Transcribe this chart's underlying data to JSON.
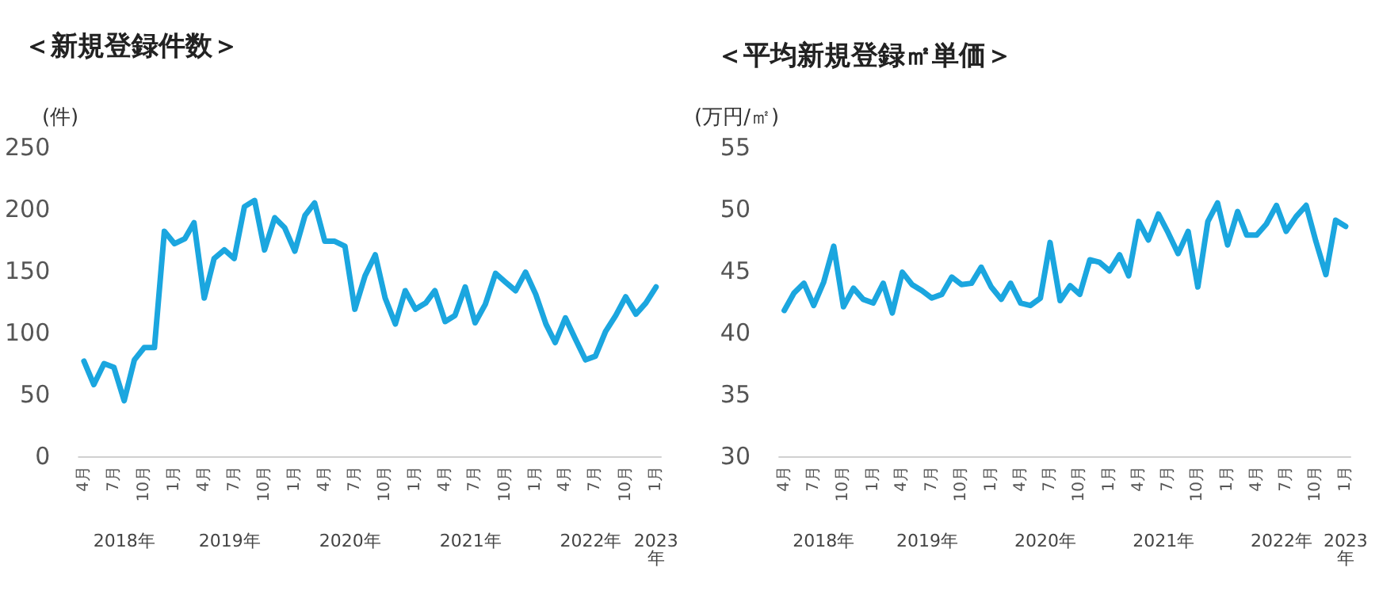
{
  "chart_data": [
    {
      "type": "line",
      "title": "＜新規登録件数＞",
      "ylabel": "(件)",
      "marker": "none",
      "line_style": "solid",
      "x": [
        "2018-04",
        "2018-05",
        "2018-06",
        "2018-07",
        "2018-08",
        "2018-09",
        "2018-10",
        "2018-11",
        "2018-12",
        "2019-01",
        "2019-02",
        "2019-03",
        "2019-04",
        "2019-05",
        "2019-06",
        "2019-07",
        "2019-08",
        "2019-09",
        "2019-10",
        "2019-11",
        "2019-12",
        "2020-01",
        "2020-02",
        "2020-03",
        "2020-04",
        "2020-05",
        "2020-06",
        "2020-07",
        "2020-08",
        "2020-09",
        "2020-10",
        "2020-11",
        "2020-12",
        "2021-01",
        "2021-02",
        "2021-03",
        "2021-04",
        "2021-05",
        "2021-06",
        "2021-07",
        "2021-08",
        "2021-09",
        "2021-10",
        "2021-11",
        "2021-12",
        "2022-01",
        "2022-02",
        "2022-03",
        "2022-04",
        "2022-05",
        "2022-06",
        "2022-07",
        "2022-08",
        "2022-09",
        "2022-10",
        "2022-11",
        "2022-12",
        "2023-01"
      ],
      "series": [
        {
          "color": "#1ba6df",
          "values": [
            77,
            58,
            75,
            72,
            45,
            78,
            88,
            88,
            182,
            172,
            176,
            189,
            128,
            160,
            167,
            160,
            202,
            207,
            167,
            193,
            185,
            166,
            195,
            205,
            174,
            174,
            170,
            119,
            146,
            163,
            128,
            107,
            134,
            119,
            124,
            134,
            109,
            114,
            137,
            108,
            123,
            148,
            141,
            134,
            149,
            131,
            107,
            92,
            112,
            95,
            78,
            81,
            101,
            114,
            129,
            115,
            124,
            137
          ]
        }
      ],
      "ylim": [
        0,
        250
      ],
      "yticks": [
        0,
        50,
        100,
        150,
        200,
        250
      ],
      "xlim": [
        "2018-03-16",
        "2023-01-16"
      ],
      "xticks": [
        {
          "value": "2018-04",
          "label": "4月"
        },
        {
          "value": "2018-07",
          "label": "7月"
        },
        {
          "value": "2018-10",
          "label": "10月"
        },
        {
          "value": "2019-01",
          "label": "1月"
        },
        {
          "value": "2019-04",
          "label": "4月"
        },
        {
          "value": "2019-07",
          "label": "7月"
        },
        {
          "value": "2019-10",
          "label": "10月"
        },
        {
          "value": "2020-01",
          "label": "1月"
        },
        {
          "value": "2020-04",
          "label": "4月"
        },
        {
          "value": "2020-07",
          "label": "7月"
        },
        {
          "value": "2020-10",
          "label": "10月"
        },
        {
          "value": "2021-01",
          "label": "1月"
        },
        {
          "value": "2021-04",
          "label": "4月"
        },
        {
          "value": "2021-07",
          "label": "7月"
        },
        {
          "value": "2021-10",
          "label": "10月"
        },
        {
          "value": "2022-01",
          "label": "1月"
        },
        {
          "value": "2022-04",
          "label": "4月"
        },
        {
          "value": "2022-07",
          "label": "7月"
        },
        {
          "value": "2022-10",
          "label": "10月"
        },
        {
          "value": "2023-01",
          "label": "1月"
        }
      ],
      "annotations": [
        "2018年",
        "2019年",
        "2020年",
        "2021年",
        "2022年",
        "2023年"
      ]
    },
    {
      "type": "line",
      "title": "＜平均新規登録㎡単価＞",
      "ylabel": "(万円/㎡)",
      "marker": "none",
      "line_style": "solid",
      "x": [
        "2018-04",
        "2018-05",
        "2018-06",
        "2018-07",
        "2018-08",
        "2018-09",
        "2018-10",
        "2018-11",
        "2018-12",
        "2019-01",
        "2019-02",
        "2019-03",
        "2019-04",
        "2019-05",
        "2019-06",
        "2019-07",
        "2019-08",
        "2019-09",
        "2019-10",
        "2019-11",
        "2019-12",
        "2020-01",
        "2020-02",
        "2020-03",
        "2020-04",
        "2020-05",
        "2020-06",
        "2020-07",
        "2020-08",
        "2020-09",
        "2020-10",
        "2020-11",
        "2020-12",
        "2021-01",
        "2021-02",
        "2021-03",
        "2021-04",
        "2021-05",
        "2021-06",
        "2021-07",
        "2021-08",
        "2021-09",
        "2021-10",
        "2021-11",
        "2021-12",
        "2022-01",
        "2022-02",
        "2022-03",
        "2022-04",
        "2022-05",
        "2022-06",
        "2022-07",
        "2022-08",
        "2022-09",
        "2022-10",
        "2022-11",
        "2022-12",
        "2023-01"
      ],
      "series": [
        {
          "color": "#1ba6df",
          "values": [
            41.8,
            43.2,
            44.0,
            42.2,
            44.1,
            47.0,
            42.1,
            43.6,
            42.7,
            42.4,
            44.0,
            41.6,
            44.9,
            43.9,
            43.4,
            42.8,
            43.1,
            44.5,
            43.9,
            44.0,
            45.3,
            43.7,
            42.7,
            44.0,
            42.4,
            42.2,
            42.8,
            47.3,
            42.6,
            43.8,
            43.1,
            45.9,
            45.7,
            45.0,
            46.3,
            44.6,
            49.0,
            47.5,
            49.6,
            48.1,
            46.4,
            48.2,
            43.7,
            49.0,
            50.5,
            47.1,
            49.8,
            47.9,
            47.9,
            48.8,
            50.3,
            48.2,
            49.4,
            50.3,
            47.4,
            44.7,
            49.1,
            48.6
          ]
        }
      ],
      "ylim": [
        30,
        55
      ],
      "yticks": [
        30,
        35,
        40,
        45,
        50,
        55
      ],
      "xlim": [
        "2018-03-16",
        "2023-01-16"
      ],
      "xticks": [
        {
          "value": "2018-04",
          "label": "4月"
        },
        {
          "value": "2018-07",
          "label": "7月"
        },
        {
          "value": "2018-10",
          "label": "10月"
        },
        {
          "value": "2019-01",
          "label": "1月"
        },
        {
          "value": "2019-04",
          "label": "4月"
        },
        {
          "value": "2019-07",
          "label": "7月"
        },
        {
          "value": "2019-10",
          "label": "10月"
        },
        {
          "value": "2020-01",
          "label": "1月"
        },
        {
          "value": "2020-04",
          "label": "4月"
        },
        {
          "value": "2020-07",
          "label": "7月"
        },
        {
          "value": "2020-10",
          "label": "10月"
        },
        {
          "value": "2021-01",
          "label": "1月"
        },
        {
          "value": "2021-04",
          "label": "4月"
        },
        {
          "value": "2021-07",
          "label": "7月"
        },
        {
          "value": "2021-10",
          "label": "10月"
        },
        {
          "value": "2022-01",
          "label": "1月"
        },
        {
          "value": "2022-04",
          "label": "4月"
        },
        {
          "value": "2022-07",
          "label": "7月"
        },
        {
          "value": "2022-10",
          "label": "10月"
        },
        {
          "value": "2023-01",
          "label": "1月"
        }
      ],
      "annotations": [
        "2018年",
        "2019年",
        "2020年",
        "2021年",
        "2022年",
        "2023年"
      ]
    }
  ]
}
